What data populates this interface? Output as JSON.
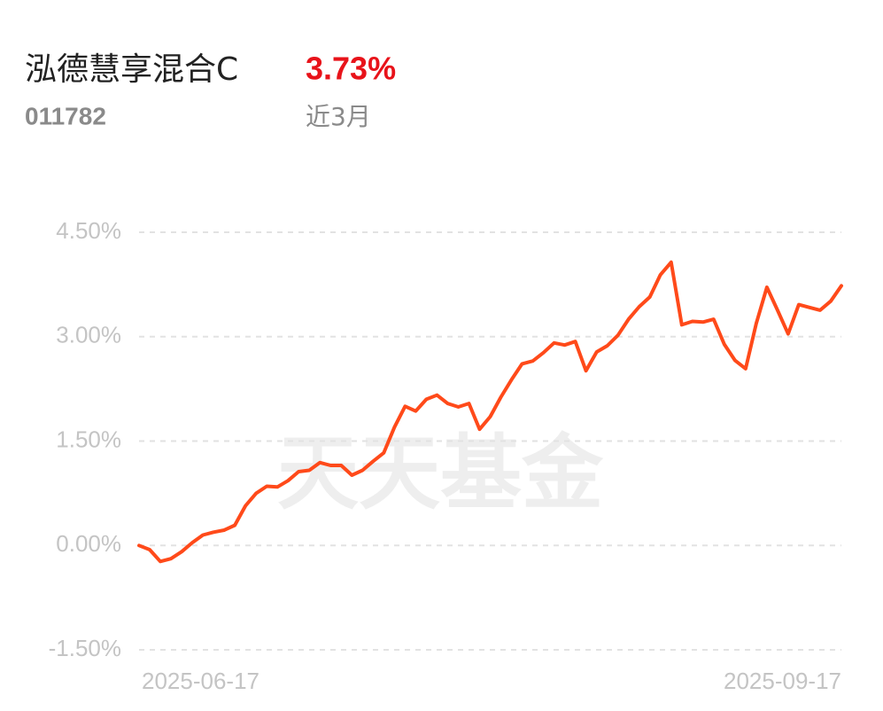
{
  "fund_name": "泓德慧享混合C",
  "fund_code": "011782",
  "return_value": "3.73%",
  "period": "近3月",
  "watermark": "天天基金",
  "chart_data": {
    "type": "line",
    "color": "#ff4a1a",
    "grid": true,
    "ylim": [
      -1.5,
      4.5
    ],
    "yticks": [
      {
        "value": 4.5,
        "label": "4.50%"
      },
      {
        "value": 3.0,
        "label": "3.00%"
      },
      {
        "value": 1.5,
        "label": "1.50%"
      },
      {
        "value": 0.0,
        "label": "0.00%"
      },
      {
        "value": -1.5,
        "label": "-1.50%"
      }
    ],
    "categories": [
      "2025-06-17",
      null,
      null,
      null,
      null,
      null,
      null,
      null,
      null,
      null,
      null,
      null,
      null,
      null,
      null,
      null,
      null,
      null,
      null,
      null,
      null,
      null,
      null,
      null,
      null,
      null,
      null,
      null,
      null,
      null,
      null,
      null,
      null,
      null,
      null,
      null,
      null,
      null,
      null,
      null,
      null,
      null,
      null,
      null,
      null,
      null,
      null,
      null,
      null,
      null,
      null,
      null,
      null,
      null,
      null,
      null,
      null,
      null,
      null,
      null,
      null,
      null,
      null,
      null,
      null,
      null,
      "2025-09-17"
    ],
    "values": [
      0.0,
      -0.06,
      -0.23,
      -0.19,
      -0.09,
      0.04,
      0.15,
      0.19,
      0.22,
      0.29,
      0.57,
      0.75,
      0.85,
      0.84,
      0.93,
      1.06,
      1.08,
      1.19,
      1.15,
      1.15,
      1.01,
      1.08,
      1.21,
      1.33,
      1.7,
      2.0,
      1.93,
      2.1,
      2.16,
      2.04,
      1.99,
      2.04,
      1.67,
      1.85,
      2.13,
      2.38,
      2.61,
      2.65,
      2.77,
      2.91,
      2.88,
      2.93,
      2.51,
      2.78,
      2.87,
      3.02,
      3.25,
      3.43,
      3.57,
      3.89,
      4.07,
      3.17,
      3.22,
      3.21,
      3.25,
      2.89,
      2.66,
      2.54,
      3.19,
      3.71,
      3.38,
      3.04,
      3.46,
      3.42,
      3.38,
      3.51,
      3.73
    ]
  }
}
